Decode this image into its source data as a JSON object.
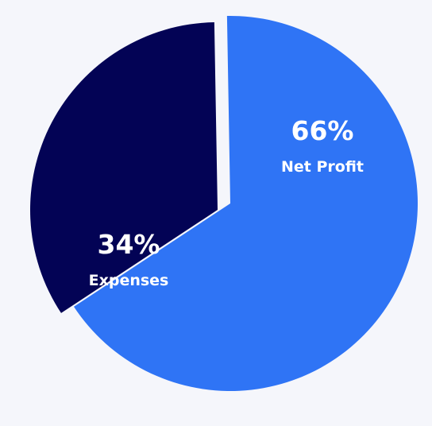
{
  "chart_data": {
    "type": "pie",
    "slices": [
      {
        "label": "Net Profit",
        "value": 66,
        "value_label": "66%",
        "color": "#2f74f5"
      },
      {
        "label": "Expenses",
        "value": 34,
        "value_label": "34%",
        "color": "#030355"
      }
    ],
    "exploded": "Expenses",
    "background": "#f5f6fb"
  }
}
